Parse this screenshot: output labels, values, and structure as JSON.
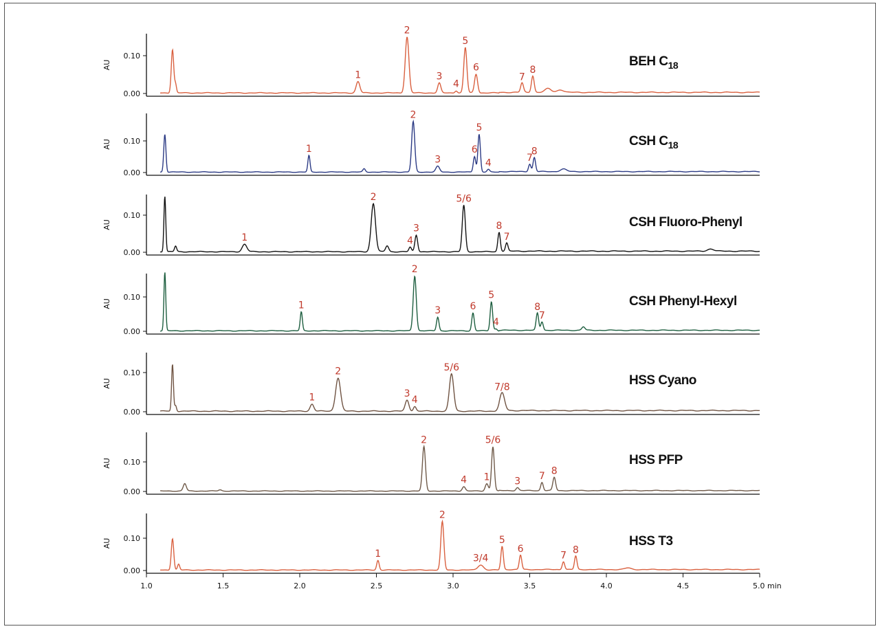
{
  "chart_data": {
    "type": "line",
    "x_axis": {
      "range": [
        1.0,
        5.0
      ],
      "ticks": [
        "1.0",
        "1.5",
        "2.0",
        "2.5",
        "3.0",
        "3.5",
        "4.0",
        "4.5",
        "5.0 min"
      ]
    },
    "ylabel": "AU",
    "y_ticks": [
      "0.00",
      "0.10"
    ],
    "panels": [
      {
        "title": "BEH C",
        "subscript": "18",
        "color": "#d9603f",
        "ylim": [
          0,
          0.165
        ],
        "peaks": [
          {
            "t": 1.17,
            "h": 0.115,
            "w": 0.008
          },
          {
            "t": 1.19,
            "h": 0.022,
            "w": 0.006
          },
          {
            "t": 2.38,
            "h": 0.03,
            "w": 0.012,
            "label": "1"
          },
          {
            "t": 2.7,
            "h": 0.148,
            "w": 0.012,
            "label": "2"
          },
          {
            "t": 2.91,
            "h": 0.026,
            "w": 0.01,
            "label": "3"
          },
          {
            "t": 3.02,
            "h": 0.006,
            "w": 0.008,
            "label": "4"
          },
          {
            "t": 3.08,
            "h": 0.12,
            "w": 0.01,
            "label": "5"
          },
          {
            "t": 3.15,
            "h": 0.05,
            "w": 0.01,
            "label": "6"
          },
          {
            "t": 3.45,
            "h": 0.025,
            "w": 0.009,
            "label": "7"
          },
          {
            "t": 3.52,
            "h": 0.044,
            "w": 0.009,
            "label": "8"
          },
          {
            "t": 3.62,
            "h": 0.01,
            "w": 0.02
          },
          {
            "t": 3.7,
            "h": 0.007,
            "w": 0.02
          }
        ]
      },
      {
        "title": "CSH C",
        "subscript": "18",
        "color": "#2b3a84",
        "ylim": [
          0,
          0.165
        ],
        "peaks": [
          {
            "t": 1.12,
            "h": 0.12,
            "w": 0.007
          },
          {
            "t": 2.06,
            "h": 0.052,
            "w": 0.007,
            "label": "1"
          },
          {
            "t": 2.42,
            "h": 0.01,
            "w": 0.008
          },
          {
            "t": 2.74,
            "h": 0.16,
            "w": 0.01,
            "label": "2"
          },
          {
            "t": 2.9,
            "h": 0.018,
            "w": 0.012,
            "label": "3"
          },
          {
            "t": 3.14,
            "h": 0.05,
            "w": 0.008,
            "label": "6"
          },
          {
            "t": 3.17,
            "h": 0.12,
            "w": 0.008,
            "label": "5"
          },
          {
            "t": 3.23,
            "h": 0.008,
            "w": 0.008,
            "label": "4"
          },
          {
            "t": 3.5,
            "h": 0.024,
            "w": 0.008,
            "label": "7"
          },
          {
            "t": 3.53,
            "h": 0.045,
            "w": 0.008,
            "label": "8"
          },
          {
            "t": 3.72,
            "h": 0.008,
            "w": 0.02
          }
        ]
      },
      {
        "title": "CSH Fluoro-Phenyl",
        "subscript": "",
        "color": "#111111",
        "ylim": [
          0,
          0.15
        ],
        "peaks": [
          {
            "t": 1.12,
            "h": 0.15,
            "w": 0.006
          },
          {
            "t": 1.19,
            "h": 0.015,
            "w": 0.007
          },
          {
            "t": 1.64,
            "h": 0.02,
            "w": 0.015,
            "label": "1"
          },
          {
            "t": 2.48,
            "h": 0.13,
            "w": 0.014,
            "label": "2"
          },
          {
            "t": 2.57,
            "h": 0.016,
            "w": 0.01
          },
          {
            "t": 2.72,
            "h": 0.012,
            "w": 0.008,
            "label": "4"
          },
          {
            "t": 2.76,
            "h": 0.045,
            "w": 0.009,
            "label": "3"
          },
          {
            "t": 3.07,
            "h": 0.125,
            "w": 0.01,
            "label": "5/6"
          },
          {
            "t": 3.3,
            "h": 0.052,
            "w": 0.008,
            "label": "8"
          },
          {
            "t": 3.35,
            "h": 0.022,
            "w": 0.008,
            "label": "7"
          },
          {
            "t": 4.68,
            "h": 0.006,
            "w": 0.02
          }
        ]
      },
      {
        "title": "CSH Phenyl-Hexyl",
        "subscript": "",
        "color": "#1d5e3f",
        "ylim": [
          0,
          0.175
        ],
        "peaks": [
          {
            "t": 1.12,
            "h": 0.17,
            "w": 0.006
          },
          {
            "t": 2.01,
            "h": 0.055,
            "w": 0.007,
            "label": "1"
          },
          {
            "t": 2.75,
            "h": 0.16,
            "w": 0.01,
            "label": "2"
          },
          {
            "t": 2.9,
            "h": 0.04,
            "w": 0.008,
            "label": "3"
          },
          {
            "t": 3.13,
            "h": 0.052,
            "w": 0.008,
            "label": "6"
          },
          {
            "t": 3.25,
            "h": 0.085,
            "w": 0.008,
            "label": "5"
          },
          {
            "t": 3.28,
            "h": 0.006,
            "w": 0.008,
            "label": "4"
          },
          {
            "t": 3.55,
            "h": 0.05,
            "w": 0.008,
            "label": "8"
          },
          {
            "t": 3.58,
            "h": 0.025,
            "w": 0.008,
            "label": "7"
          },
          {
            "t": 3.85,
            "h": 0.01,
            "w": 0.01
          }
        ]
      },
      {
        "title": "HSS Cyano",
        "subscript": "",
        "color": "#6f5342",
        "ylim": [
          0,
          0.125
        ],
        "peaks": [
          {
            "t": 1.17,
            "h": 0.12,
            "w": 0.006
          },
          {
            "t": 1.19,
            "h": 0.015,
            "w": 0.006
          },
          {
            "t": 2.08,
            "h": 0.018,
            "w": 0.012,
            "label": "1"
          },
          {
            "t": 2.25,
            "h": 0.085,
            "w": 0.016,
            "label": "2"
          },
          {
            "t": 2.7,
            "h": 0.028,
            "w": 0.012,
            "label": "3"
          },
          {
            "t": 2.75,
            "h": 0.012,
            "w": 0.009,
            "label": "4"
          },
          {
            "t": 2.99,
            "h": 0.095,
            "w": 0.014,
            "label": "5/6"
          },
          {
            "t": 3.32,
            "h": 0.045,
            "w": 0.016,
            "label": "7/8"
          }
        ]
      },
      {
        "title": "HSS PFP",
        "subscript": "",
        "color": "#6f5a49",
        "ylim": [
          0,
          0.165
        ],
        "peaks": [
          {
            "t": 1.25,
            "h": 0.025,
            "w": 0.01
          },
          {
            "t": 1.48,
            "h": 0.004,
            "w": 0.01
          },
          {
            "t": 2.81,
            "h": 0.15,
            "w": 0.01,
            "label": "2"
          },
          {
            "t": 3.07,
            "h": 0.015,
            "w": 0.01,
            "label": "4"
          },
          {
            "t": 3.22,
            "h": 0.025,
            "w": 0.01,
            "label": "1"
          },
          {
            "t": 3.26,
            "h": 0.15,
            "w": 0.009,
            "label": "5/6"
          },
          {
            "t": 3.42,
            "h": 0.01,
            "w": 0.009,
            "label": "3"
          },
          {
            "t": 3.58,
            "h": 0.028,
            "w": 0.008,
            "label": "7"
          },
          {
            "t": 3.66,
            "h": 0.045,
            "w": 0.009,
            "label": "8"
          }
        ]
      },
      {
        "title": "HSS T3",
        "subscript": "",
        "color": "#d9603f",
        "ylim": [
          0,
          0.165
        ],
        "peaks": [
          {
            "t": 1.17,
            "h": 0.098,
            "w": 0.008
          },
          {
            "t": 1.21,
            "h": 0.018,
            "w": 0.007
          },
          {
            "t": 2.51,
            "h": 0.03,
            "w": 0.008,
            "label": "1"
          },
          {
            "t": 2.93,
            "h": 0.15,
            "w": 0.01,
            "label": "2"
          },
          {
            "t": 3.18,
            "h": 0.016,
            "w": 0.018,
            "label": "3/4"
          },
          {
            "t": 3.32,
            "h": 0.072,
            "w": 0.008,
            "label": "5"
          },
          {
            "t": 3.44,
            "h": 0.045,
            "w": 0.008,
            "label": "6"
          },
          {
            "t": 3.72,
            "h": 0.025,
            "w": 0.008,
            "label": "7"
          },
          {
            "t": 3.8,
            "h": 0.042,
            "w": 0.008,
            "label": "8"
          },
          {
            "t": 4.14,
            "h": 0.005,
            "w": 0.02
          }
        ]
      }
    ]
  }
}
